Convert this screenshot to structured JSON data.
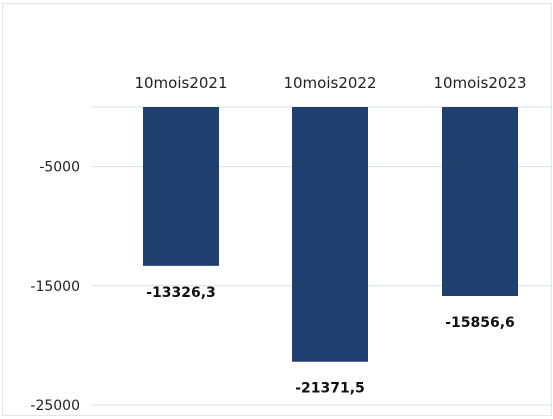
{
  "chart_data": {
    "type": "bar",
    "categories": [
      "10mois2021",
      "10mois2022",
      "10mois2023"
    ],
    "values": [
      -13326.3,
      -21371.5,
      -15856.6
    ],
    "data_labels": [
      "-13326,3",
      "-21371,5",
      "-15856,6"
    ],
    "yticks": [
      -5000,
      -15000,
      -25000
    ],
    "ytick_labels": [
      "-5000",
      "-15000",
      "-25000"
    ],
    "ylim": [
      -25000,
      0
    ],
    "category_labels_position": "top",
    "grid": true,
    "legend": "none",
    "colors": {
      "bar": "#1f3f6e",
      "grid": "#d9e1ea",
      "border": "#dfe6ee"
    },
    "title": "",
    "xlabel": "",
    "ylabel": ""
  }
}
